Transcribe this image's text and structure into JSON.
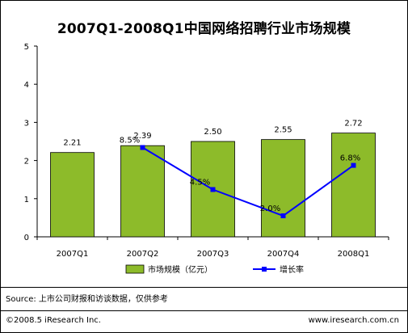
{
  "chart_data": {
    "type": "bar",
    "title": "2007Q1-2008Q1中国网络招聘行业市场规模",
    "categories": [
      "2007Q1",
      "2007Q2",
      "2007Q3",
      "2007Q4",
      "2008Q1"
    ],
    "series": [
      {
        "name": "市场规模（亿元）",
        "type": "bar",
        "values": [
          2.21,
          2.39,
          2.5,
          2.55,
          2.72
        ],
        "labels": [
          "2.21",
          "2.39",
          "2.50",
          "2.55",
          "2.72"
        ],
        "color": "#8dbb2a"
      },
      {
        "name": "增长率",
        "type": "line",
        "values": [
          null,
          8.5,
          4.5,
          2.0,
          6.8
        ],
        "labels": [
          "",
          "8.5%",
          "4.5%",
          "2.0%",
          "6.8%"
        ],
        "color": "#0000ff"
      }
    ],
    "ylim": [
      0,
      5
    ],
    "yticks": [
      "0",
      "1",
      "2",
      "3",
      "4",
      "5"
    ],
    "grid": false,
    "legend": "bottom-center"
  },
  "footer": {
    "source": "Source: 上市公司财报和访谈数据，仅供参考",
    "copyright": "©2008.5  iResearch Inc.",
    "website": "www.iresearch.com.cn"
  }
}
